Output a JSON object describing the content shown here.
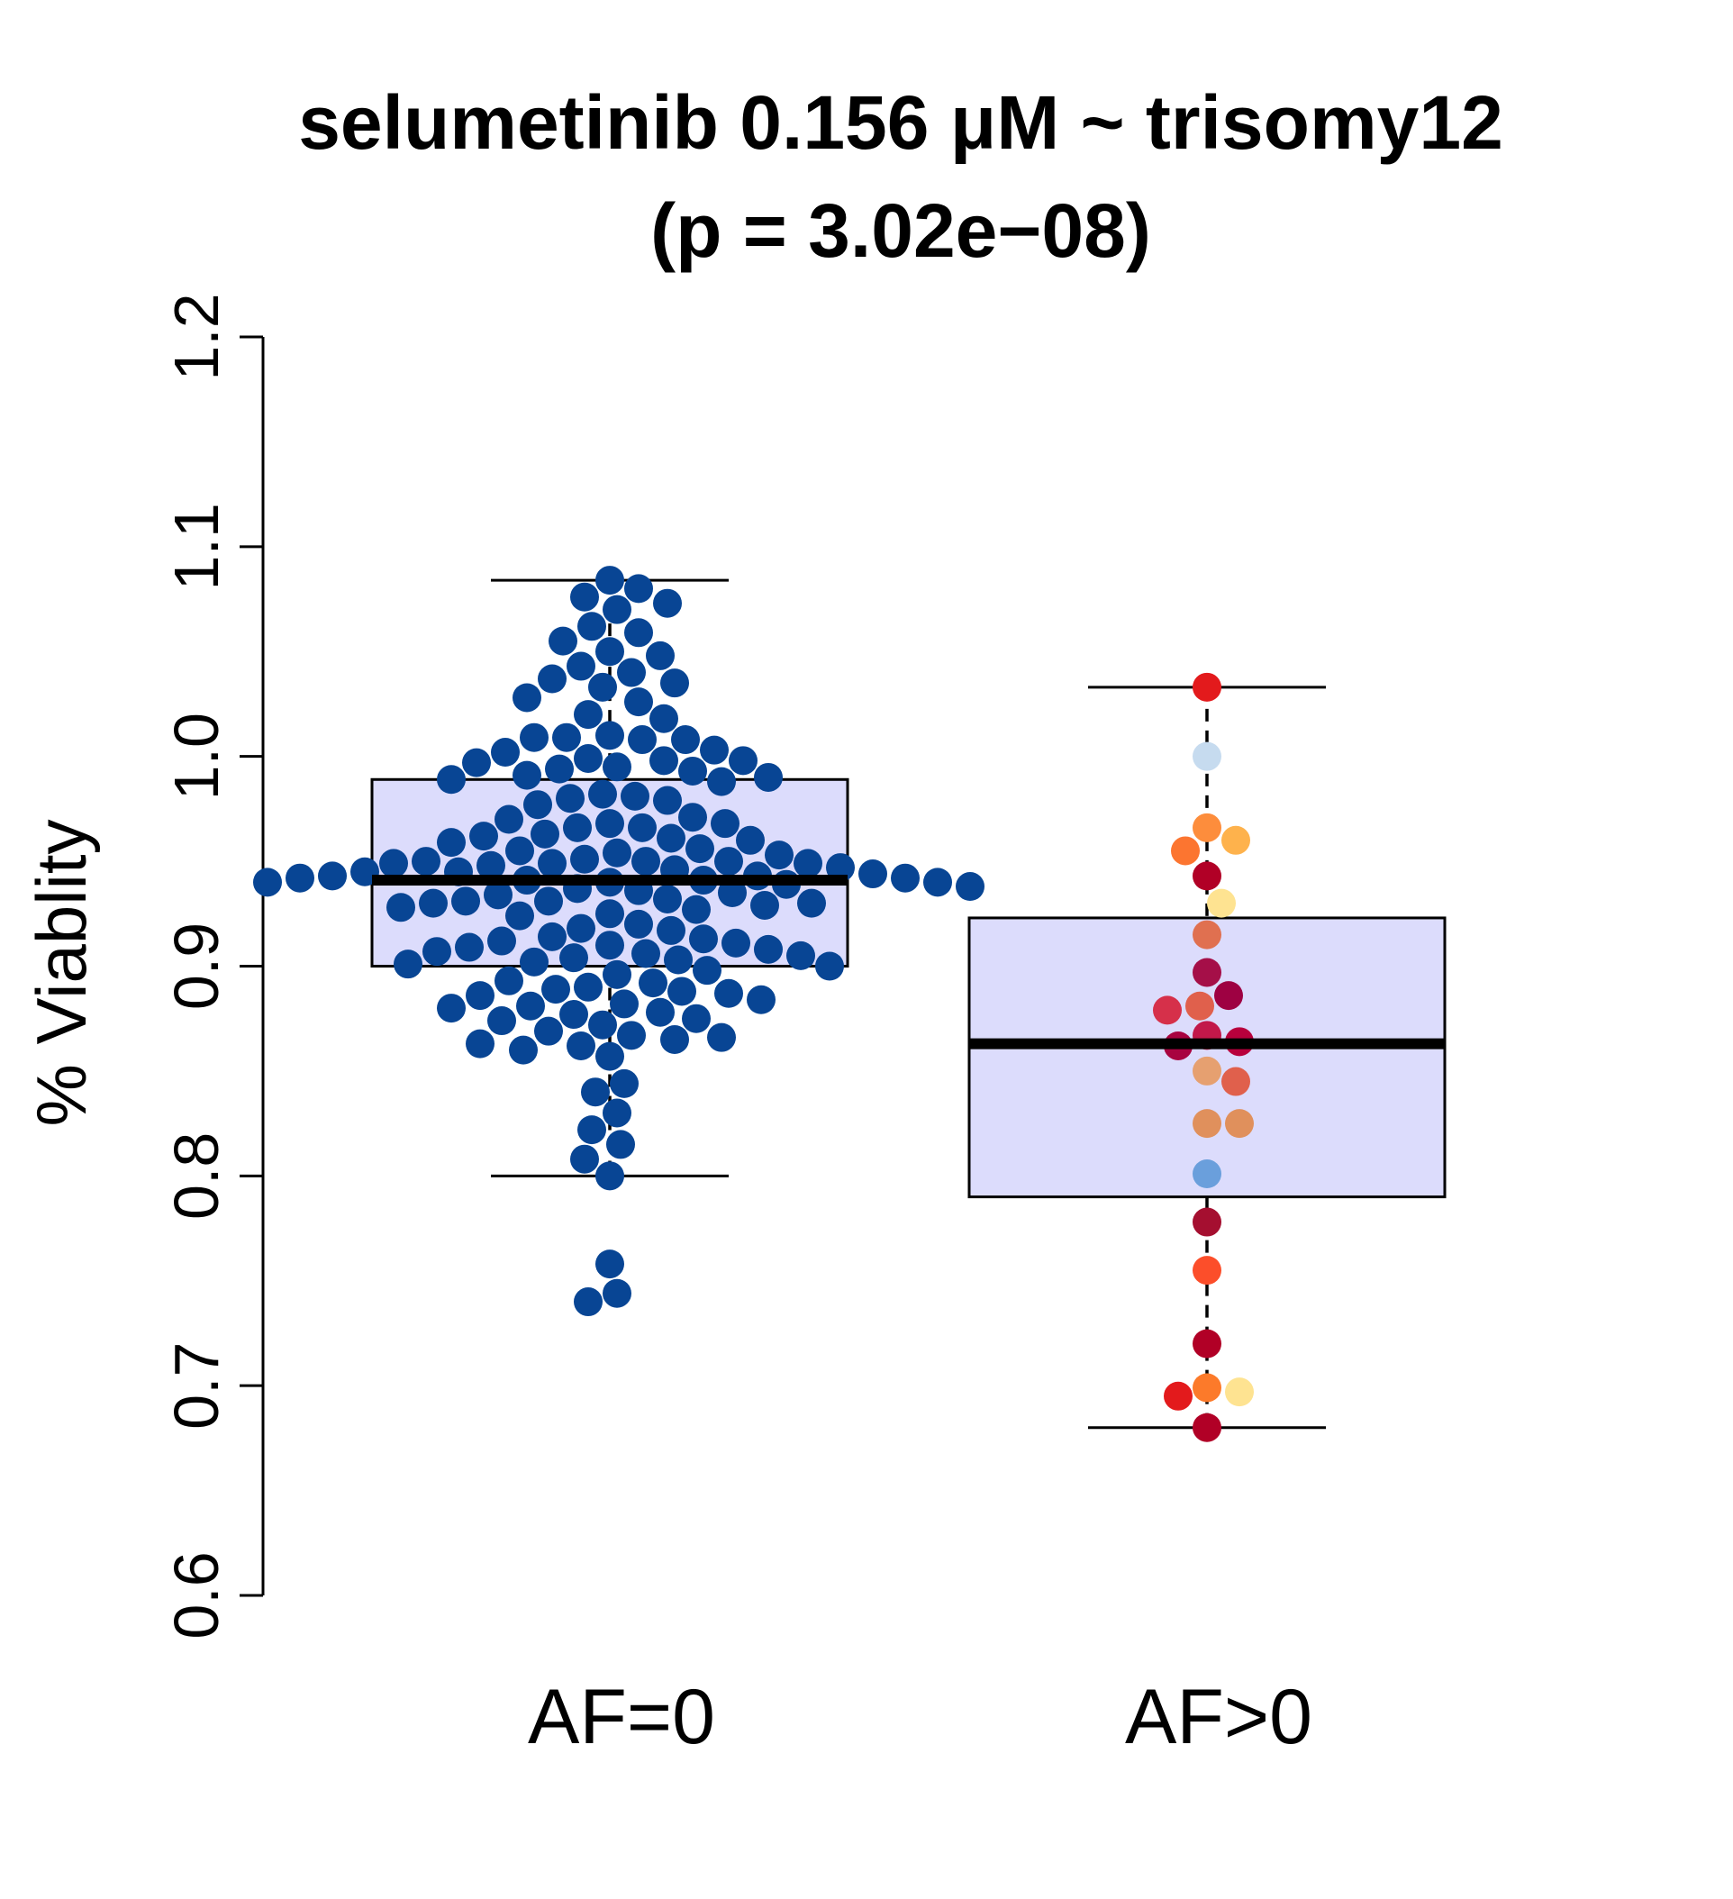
{
  "chart_data": {
    "type": "box",
    "title": "selumetinib 0.156 μM ~ trisomy12",
    "subtitle": "(p = 3.02e−08)",
    "ylabel": "% Viablity",
    "xlabel": "",
    "ylim": [
      0.6,
      1.2
    ],
    "yticks": [
      "0.6",
      "0.7",
      "0.8",
      "0.9",
      "1.0",
      "1.1",
      "1.2"
    ],
    "grid": false,
    "colors": {
      "box_fill": "#dcdcfc",
      "box_stroke": "#000000",
      "af0_point": "#084594"
    },
    "groups": [
      {
        "label": "AF=0",
        "whisker_low": 0.8,
        "q1": 0.9,
        "median": 0.941,
        "q3": 0.989,
        "whisker_high": 1.084,
        "points": [
          {
            "y": 1.084,
            "c": "#084594"
          },
          {
            "y": 1.08,
            "c": "#084594"
          },
          {
            "y": 1.076,
            "c": "#084594"
          },
          {
            "y": 1.073,
            "c": "#084594"
          },
          {
            "y": 1.07,
            "c": "#084594"
          },
          {
            "y": 1.062,
            "c": "#084594"
          },
          {
            "y": 1.059,
            "c": "#084594"
          },
          {
            "y": 1.055,
            "c": "#084594"
          },
          {
            "y": 1.05,
            "c": "#084594"
          },
          {
            "y": 1.048,
            "c": "#084594"
          },
          {
            "y": 1.043,
            "c": "#084594"
          },
          {
            "y": 1.04,
            "c": "#084594"
          },
          {
            "y": 1.037,
            "c": "#084594"
          },
          {
            "y": 1.035,
            "c": "#084594"
          },
          {
            "y": 1.033,
            "c": "#084594"
          },
          {
            "y": 1.028,
            "c": "#084594"
          },
          {
            "y": 1.026,
            "c": "#084594"
          },
          {
            "y": 1.02,
            "c": "#084594"
          },
          {
            "y": 1.018,
            "c": "#084594"
          },
          {
            "y": 1.01,
            "c": "#084594"
          },
          {
            "y": 1.009,
            "c": "#084594"
          },
          {
            "y": 1.009,
            "c": "#084594"
          },
          {
            "y": 1.008,
            "c": "#084594"
          },
          {
            "y": 1.008,
            "c": "#084594"
          },
          {
            "y": 1.003,
            "c": "#084594"
          },
          {
            "y": 1.002,
            "c": "#084594"
          },
          {
            "y": 0.999,
            "c": "#084594"
          },
          {
            "y": 0.998,
            "c": "#084594"
          },
          {
            "y": 0.998,
            "c": "#084594"
          },
          {
            "y": 0.997,
            "c": "#084594"
          },
          {
            "y": 0.995,
            "c": "#084594"
          },
          {
            "y": 0.994,
            "c": "#084594"
          },
          {
            "y": 0.993,
            "c": "#084594"
          },
          {
            "y": 0.991,
            "c": "#084594"
          },
          {
            "y": 0.99,
            "c": "#084594"
          },
          {
            "y": 0.989,
            "c": "#084594"
          },
          {
            "y": 0.988,
            "c": "#084594"
          },
          {
            "y": 0.982,
            "c": "#084594"
          },
          {
            "y": 0.981,
            "c": "#084594"
          },
          {
            "y": 0.98,
            "c": "#084594"
          },
          {
            "y": 0.979,
            "c": "#084594"
          },
          {
            "y": 0.977,
            "c": "#084594"
          },
          {
            "y": 0.971,
            "c": "#084594"
          },
          {
            "y": 0.97,
            "c": "#084594"
          },
          {
            "y": 0.968,
            "c": "#084594"
          },
          {
            "y": 0.968,
            "c": "#084594"
          },
          {
            "y": 0.966,
            "c": "#084594"
          },
          {
            "y": 0.966,
            "c": "#084594"
          },
          {
            "y": 0.963,
            "c": "#084594"
          },
          {
            "y": 0.962,
            "c": "#084594"
          },
          {
            "y": 0.961,
            "c": "#084594"
          },
          {
            "y": 0.96,
            "c": "#084594"
          },
          {
            "y": 0.959,
            "c": "#084594"
          },
          {
            "y": 0.956,
            "c": "#084594"
          },
          {
            "y": 0.955,
            "c": "#084594"
          },
          {
            "y": 0.954,
            "c": "#084594"
          },
          {
            "y": 0.953,
            "c": "#084594"
          },
          {
            "y": 0.951,
            "c": "#084594"
          },
          {
            "y": 0.95,
            "c": "#084594"
          },
          {
            "y": 0.95,
            "c": "#084594"
          },
          {
            "y": 0.95,
            "c": "#084594"
          },
          {
            "y": 0.949,
            "c": "#084594"
          },
          {
            "y": 0.949,
            "c": "#084594"
          },
          {
            "y": 0.949,
            "c": "#084594"
          },
          {
            "y": 0.948,
            "c": "#084594"
          },
          {
            "y": 0.947,
            "c": "#084594"
          },
          {
            "y": 0.946,
            "c": "#084594"
          },
          {
            "y": 0.945,
            "c": "#084594"
          },
          {
            "y": 0.945,
            "c": "#084594"
          },
          {
            "y": 0.944,
            "c": "#084594"
          },
          {
            "y": 0.943,
            "c": "#084594"
          },
          {
            "y": 0.943,
            "c": "#084594"
          },
          {
            "y": 0.942,
            "c": "#084594"
          },
          {
            "y": 0.942,
            "c": "#084594"
          },
          {
            "y": 0.941,
            "c": "#084594"
          },
          {
            "y": 0.941,
            "c": "#084594"
          },
          {
            "y": 0.94,
            "c": "#084594"
          },
          {
            "y": 0.94,
            "c": "#084594"
          },
          {
            "y": 0.94,
            "c": "#084594"
          },
          {
            "y": 0.939,
            "c": "#084594"
          },
          {
            "y": 0.938,
            "c": "#084594"
          },
          {
            "y": 0.937,
            "c": "#084594"
          },
          {
            "y": 0.936,
            "c": "#084594"
          },
          {
            "y": 0.935,
            "c": "#084594"
          },
          {
            "y": 0.934,
            "c": "#084594"
          },
          {
            "y": 0.932,
            "c": "#084594"
          },
          {
            "y": 0.931,
            "c": "#084594"
          },
          {
            "y": 0.931,
            "c": "#084594"
          },
          {
            "y": 0.93,
            "c": "#084594"
          },
          {
            "y": 0.93,
            "c": "#084594"
          },
          {
            "y": 0.929,
            "c": "#084594"
          },
          {
            "y": 0.928,
            "c": "#084594"
          },
          {
            "y": 0.927,
            "c": "#084594"
          },
          {
            "y": 0.925,
            "c": "#084594"
          },
          {
            "y": 0.924,
            "c": "#084594"
          },
          {
            "y": 0.92,
            "c": "#084594"
          },
          {
            "y": 0.918,
            "c": "#084594"
          },
          {
            "y": 0.917,
            "c": "#084594"
          },
          {
            "y": 0.914,
            "c": "#084594"
          },
          {
            "y": 0.913,
            "c": "#084594"
          },
          {
            "y": 0.912,
            "c": "#084594"
          },
          {
            "y": 0.911,
            "c": "#084594"
          },
          {
            "y": 0.91,
            "c": "#084594"
          },
          {
            "y": 0.909,
            "c": "#084594"
          },
          {
            "y": 0.908,
            "c": "#084594"
          },
          {
            "y": 0.907,
            "c": "#084594"
          },
          {
            "y": 0.906,
            "c": "#084594"
          },
          {
            "y": 0.905,
            "c": "#084594"
          },
          {
            "y": 0.904,
            "c": "#084594"
          },
          {
            "y": 0.903,
            "c": "#084594"
          },
          {
            "y": 0.902,
            "c": "#084594"
          },
          {
            "y": 0.901,
            "c": "#084594"
          },
          {
            "y": 0.9,
            "c": "#084594"
          },
          {
            "y": 0.898,
            "c": "#084594"
          },
          {
            "y": 0.896,
            "c": "#084594"
          },
          {
            "y": 0.893,
            "c": "#084594"
          },
          {
            "y": 0.892,
            "c": "#084594"
          },
          {
            "y": 0.89,
            "c": "#084594"
          },
          {
            "y": 0.889,
            "c": "#084594"
          },
          {
            "y": 0.888,
            "c": "#084594"
          },
          {
            "y": 0.887,
            "c": "#084594"
          },
          {
            "y": 0.886,
            "c": "#084594"
          },
          {
            "y": 0.884,
            "c": "#084594"
          },
          {
            "y": 0.882,
            "c": "#084594"
          },
          {
            "y": 0.881,
            "c": "#084594"
          },
          {
            "y": 0.88,
            "c": "#084594"
          },
          {
            "y": 0.878,
            "c": "#084594"
          },
          {
            "y": 0.877,
            "c": "#084594"
          },
          {
            "y": 0.875,
            "c": "#084594"
          },
          {
            "y": 0.874,
            "c": "#084594"
          },
          {
            "y": 0.872,
            "c": "#084594"
          },
          {
            "y": 0.869,
            "c": "#084594"
          },
          {
            "y": 0.867,
            "c": "#084594"
          },
          {
            "y": 0.866,
            "c": "#084594"
          },
          {
            "y": 0.865,
            "c": "#084594"
          },
          {
            "y": 0.863,
            "c": "#084594"
          },
          {
            "y": 0.862,
            "c": "#084594"
          },
          {
            "y": 0.86,
            "c": "#084594"
          },
          {
            "y": 0.857,
            "c": "#084594"
          },
          {
            "y": 0.844,
            "c": "#084594"
          },
          {
            "y": 0.84,
            "c": "#084594"
          },
          {
            "y": 0.83,
            "c": "#084594"
          },
          {
            "y": 0.822,
            "c": "#084594"
          },
          {
            "y": 0.815,
            "c": "#084594"
          },
          {
            "y": 0.808,
            "c": "#084594"
          },
          {
            "y": 0.8,
            "c": "#084594"
          },
          {
            "y": 0.758,
            "c": "#084594"
          },
          {
            "y": 0.744,
            "c": "#084594"
          },
          {
            "y": 0.74,
            "c": "#084594"
          }
        ]
      },
      {
        "label": "AF>0",
        "whisker_low": 0.68,
        "q1": 0.79,
        "median": 0.863,
        "q3": 0.923,
        "whisker_high": 1.033,
        "points": [
          {
            "y": 1.033,
            "c": "#e31a1c"
          },
          {
            "y": 1.0,
            "c": "#c6dbef"
          },
          {
            "y": 0.966,
            "c": "#fd8d3c"
          },
          {
            "y": 0.96,
            "c": "#feb24c"
          },
          {
            "y": 0.955,
            "c": "#fc7530"
          },
          {
            "y": 0.943,
            "c": "#b10026"
          },
          {
            "y": 0.93,
            "c": "#fee391"
          },
          {
            "y": 0.915,
            "c": "#e07050"
          },
          {
            "y": 0.897,
            "c": "#a50f48"
          },
          {
            "y": 0.886,
            "c": "#9e0142"
          },
          {
            "y": 0.881,
            "c": "#e0604c"
          },
          {
            "y": 0.879,
            "c": "#d6304a"
          },
          {
            "y": 0.867,
            "c": "#c2184a"
          },
          {
            "y": 0.864,
            "c": "#b8003c"
          },
          {
            "y": 0.862,
            "c": "#a80340"
          },
          {
            "y": 0.85,
            "c": "#e6a070"
          },
          {
            "y": 0.845,
            "c": "#e0604c"
          },
          {
            "y": 0.825,
            "c": "#e0905c"
          },
          {
            "y": 0.825,
            "c": "#e0905c"
          },
          {
            "y": 0.801,
            "c": "#6a9fdc"
          },
          {
            "y": 0.778,
            "c": "#a50f30"
          },
          {
            "y": 0.755,
            "c": "#fc4e2a"
          },
          {
            "y": 0.72,
            "c": "#b10026"
          },
          {
            "y": 0.699,
            "c": "#fc7a2a"
          },
          {
            "y": 0.697,
            "c": "#fee391"
          },
          {
            "y": 0.695,
            "c": "#e31a1c"
          },
          {
            "y": 0.68,
            "c": "#b10026"
          }
        ]
      }
    ]
  }
}
